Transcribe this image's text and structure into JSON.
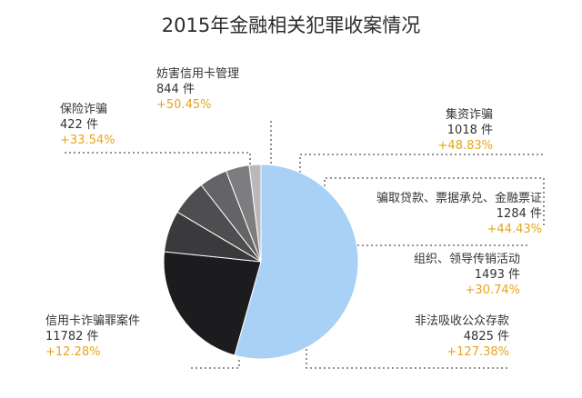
{
  "chart_data": {
    "type": "pie",
    "title": "2015年金融相关犯罪收案情况",
    "unit": "件",
    "colors": {
      "highlight": "#a9d0f5",
      "growth_text": "#e6a51e",
      "leader_line": "#555555"
    },
    "slices": [
      {
        "name": "信用卡诈骗罪案件",
        "value": 11782,
        "count_label": "11782 件",
        "growth": "+12.28%",
        "color": "#a9d0f5"
      },
      {
        "name": "非法吸收公众存款",
        "value": 4825,
        "count_label": "4825 件",
        "growth": "+127.38%",
        "color": "#1c1c1e"
      },
      {
        "name": "组织、领导传销活动",
        "value": 1493,
        "count_label": "1493 件",
        "growth": "+30.74%",
        "color": "#3a3a3c"
      },
      {
        "name": "骗取贷款、票据承兑、金融票证",
        "value": 1284,
        "count_label": "1284 件",
        "growth": "+44.43%",
        "color": "#4e4e50"
      },
      {
        "name": "集资诈骗",
        "value": 1018,
        "count_label": "1018 件",
        "growth": "+48.83%",
        "color": "#646466"
      },
      {
        "name": "妨害信用卡管理",
        "value": 844,
        "count_label": "844 件",
        "growth": "+50.45%",
        "color": "#7d7d7f"
      },
      {
        "name": "保险诈骗",
        "value": 422,
        "count_label": "422 件",
        "growth": "+33.54%",
        "color": "#b9b9bb"
      }
    ]
  }
}
